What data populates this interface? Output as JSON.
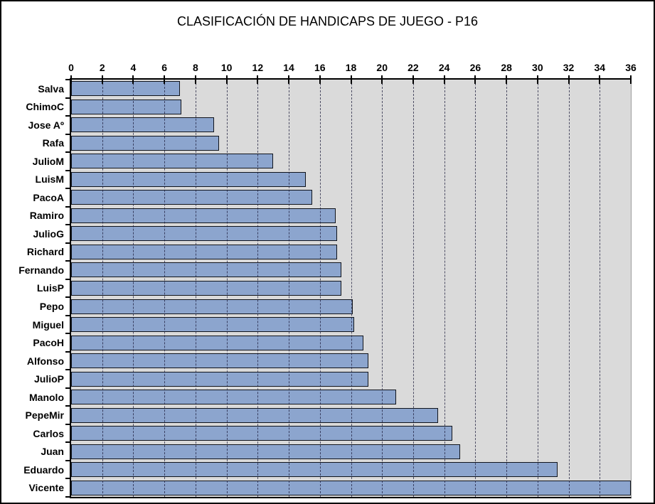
{
  "chart_data": {
    "type": "bar",
    "orientation": "horizontal",
    "title": "CLASIFICACIÓN DE HANDICAPS DE JUEGO - P16",
    "categories": [
      "Salva",
      "ChimoC",
      "Jose Aº",
      "Rafa",
      "JulioM",
      "LuisM",
      "PacoA",
      "Ramiro",
      "JulioG",
      "Richard",
      "Fernando",
      "LuisP",
      "Pepo",
      "Miguel",
      "PacoH",
      "Alfonso",
      "JulioP",
      "Manolo",
      "PepeMir",
      "Carlos",
      "Juan",
      "Eduardo",
      "Vicente"
    ],
    "values": [
      7.0,
      7.1,
      9.2,
      9.5,
      13.0,
      15.1,
      15.5,
      17.0,
      17.1,
      17.1,
      17.4,
      17.4,
      18.1,
      18.2,
      18.8,
      19.1,
      19.1,
      20.9,
      23.6,
      24.5,
      25.0,
      31.3,
      36.0
    ],
    "xlabel": "",
    "ylabel": "",
    "xlim": [
      0,
      36
    ],
    "xticks": [
      0,
      2,
      4,
      6,
      8,
      10,
      12,
      14,
      16,
      18,
      20,
      22,
      24,
      26,
      28,
      30,
      32,
      34,
      36
    ],
    "grid": "vertical-dashed-every-2",
    "legend": "none",
    "colors": {
      "bar_fill": "#8ca5ce",
      "bar_border": "#10141c",
      "plot_bg": "#dadada",
      "grid_color": "#1e1e3c",
      "axis_color": "#000000",
      "plot_right_border": "#9c9c9c",
      "text_color": "#000000",
      "canvas_bg": "#ffffff",
      "outer_border": "#000000"
    }
  }
}
